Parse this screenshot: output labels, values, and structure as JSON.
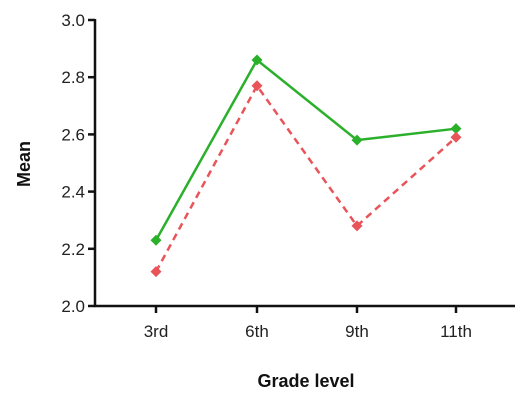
{
  "chart_data": {
    "type": "line",
    "xlabel": "Grade level",
    "ylabel": "Mean",
    "categories": [
      "3rd",
      "6th",
      "9th",
      "11th"
    ],
    "ylim": [
      2.0,
      3.0
    ],
    "yticks": [
      "2.0",
      "2.2",
      "2.4",
      "2.6",
      "2.8",
      "3.0"
    ],
    "grid": false,
    "legend": "none",
    "series": [
      {
        "values": [
          2.23,
          2.86,
          2.58,
          2.62
        ],
        "color": "#2bb02b",
        "line": "solid",
        "marker": "diamond"
      },
      {
        "values": [
          2.12,
          2.77,
          2.28,
          2.59
        ],
        "color": "#e8545a",
        "line": "dashed",
        "marker": "diamond"
      }
    ]
  }
}
